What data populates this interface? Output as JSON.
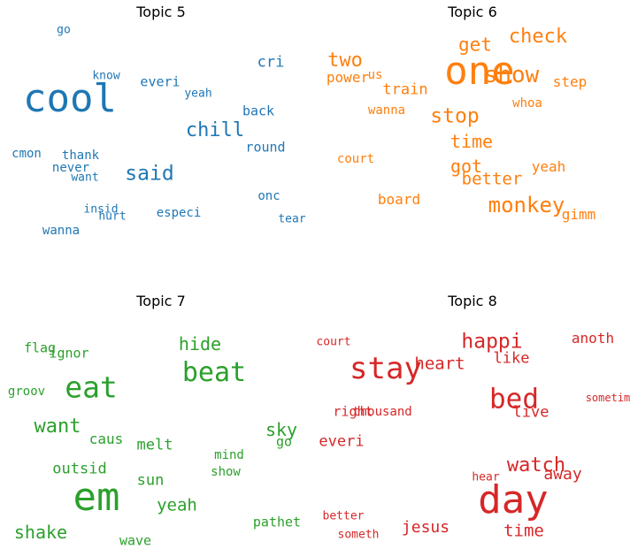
{
  "chart_data": [
    {
      "type": "wordcloud",
      "title": "Topic 5",
      "color": "#1f77b4",
      "words": [
        {
          "text": "cool",
          "weight": 1.0
        },
        {
          "text": "said",
          "weight": 0.42
        },
        {
          "text": "chill",
          "weight": 0.4
        },
        {
          "text": "cri",
          "weight": 0.28
        },
        {
          "text": "everi",
          "weight": 0.22
        },
        {
          "text": "back",
          "weight": 0.22
        },
        {
          "text": "round",
          "weight": 0.22
        },
        {
          "text": "thank",
          "weight": 0.2
        },
        {
          "text": "never",
          "weight": 0.2
        },
        {
          "text": "cmon",
          "weight": 0.2
        },
        {
          "text": "onc",
          "weight": 0.2
        },
        {
          "text": "especi",
          "weight": 0.2
        },
        {
          "text": "wanna",
          "weight": 0.2
        },
        {
          "text": "go",
          "weight": 0.16
        },
        {
          "text": "know",
          "weight": 0.15
        },
        {
          "text": "yeah",
          "weight": 0.15
        },
        {
          "text": "want",
          "weight": 0.15
        },
        {
          "text": "insid",
          "weight": 0.15
        },
        {
          "text": "hurt",
          "weight": 0.15
        },
        {
          "text": "tear",
          "weight": 0.15
        }
      ]
    },
    {
      "type": "wordcloud",
      "title": "Topic 6",
      "color": "#ff7f0e",
      "words": [
        {
          "text": "one",
          "weight": 1.0
        },
        {
          "text": "show",
          "weight": 0.5
        },
        {
          "text": "monkey",
          "weight": 0.46
        },
        {
          "text": "stop",
          "weight": 0.44
        },
        {
          "text": "two",
          "weight": 0.4
        },
        {
          "text": "check",
          "weight": 0.4
        },
        {
          "text": "get",
          "weight": 0.38
        },
        {
          "text": "time",
          "weight": 0.36
        },
        {
          "text": "got",
          "weight": 0.34
        },
        {
          "text": "better",
          "weight": 0.32
        },
        {
          "text": "train",
          "weight": 0.27
        },
        {
          "text": "power",
          "weight": 0.25
        },
        {
          "text": "step",
          "weight": 0.24
        },
        {
          "text": "yeah",
          "weight": 0.24
        },
        {
          "text": "gimm",
          "weight": 0.24
        },
        {
          "text": "board",
          "weight": 0.24
        },
        {
          "text": "wanna",
          "weight": 0.2
        },
        {
          "text": "court",
          "weight": 0.2
        },
        {
          "text": "us",
          "weight": 0.18
        },
        {
          "text": "whoa",
          "weight": 0.18
        }
      ]
    },
    {
      "type": "wordcloud",
      "title": "Topic 7",
      "color": "#2ca02c",
      "words": [
        {
          "text": "em",
          "weight": 1.0
        },
        {
          "text": "eat",
          "weight": 0.7
        },
        {
          "text": "beat",
          "weight": 0.62
        },
        {
          "text": "want",
          "weight": 0.4
        },
        {
          "text": "hide",
          "weight": 0.36
        },
        {
          "text": "sky",
          "weight": 0.36
        },
        {
          "text": "shake",
          "weight": 0.36
        },
        {
          "text": "yeah",
          "weight": 0.32
        },
        {
          "text": "melt",
          "weight": 0.26
        },
        {
          "text": "sun",
          "weight": 0.26
        },
        {
          "text": "outsid",
          "weight": 0.26
        },
        {
          "text": "caus",
          "weight": 0.24
        },
        {
          "text": "flag",
          "weight": 0.22
        },
        {
          "text": "ignor",
          "weight": 0.22
        },
        {
          "text": "go",
          "weight": 0.22
        },
        {
          "text": "pathet",
          "weight": 0.22
        },
        {
          "text": "wave",
          "weight": 0.22
        },
        {
          "text": "show",
          "weight": 0.2
        },
        {
          "text": "groov",
          "weight": 0.2
        },
        {
          "text": "mind",
          "weight": 0.18
        }
      ]
    },
    {
      "type": "wordcloud",
      "title": "Topic 8",
      "color": "#d62728",
      "words": [
        {
          "text": "day",
          "weight": 1.0
        },
        {
          "text": "stay",
          "weight": 0.72
        },
        {
          "text": "bed",
          "weight": 0.66
        },
        {
          "text": "happi",
          "weight": 0.44
        },
        {
          "text": "watch",
          "weight": 0.4
        },
        {
          "text": "heart",
          "weight": 0.32
        },
        {
          "text": "time",
          "weight": 0.32
        },
        {
          "text": "jesus",
          "weight": 0.3
        },
        {
          "text": "away",
          "weight": 0.3
        },
        {
          "text": "everi",
          "weight": 0.28
        },
        {
          "text": "like",
          "weight": 0.26
        },
        {
          "text": "live",
          "weight": 0.26
        },
        {
          "text": "anoth",
          "weight": 0.24
        },
        {
          "text": "right",
          "weight": 0.22
        },
        {
          "text": "thousand",
          "weight": 0.18
        },
        {
          "text": "court",
          "weight": 0.16
        },
        {
          "text": "hear",
          "weight": 0.16
        },
        {
          "text": "better",
          "weight": 0.16
        },
        {
          "text": "someth",
          "weight": 0.16
        },
        {
          "text": "sometim",
          "weight": 0.14
        }
      ]
    }
  ]
}
